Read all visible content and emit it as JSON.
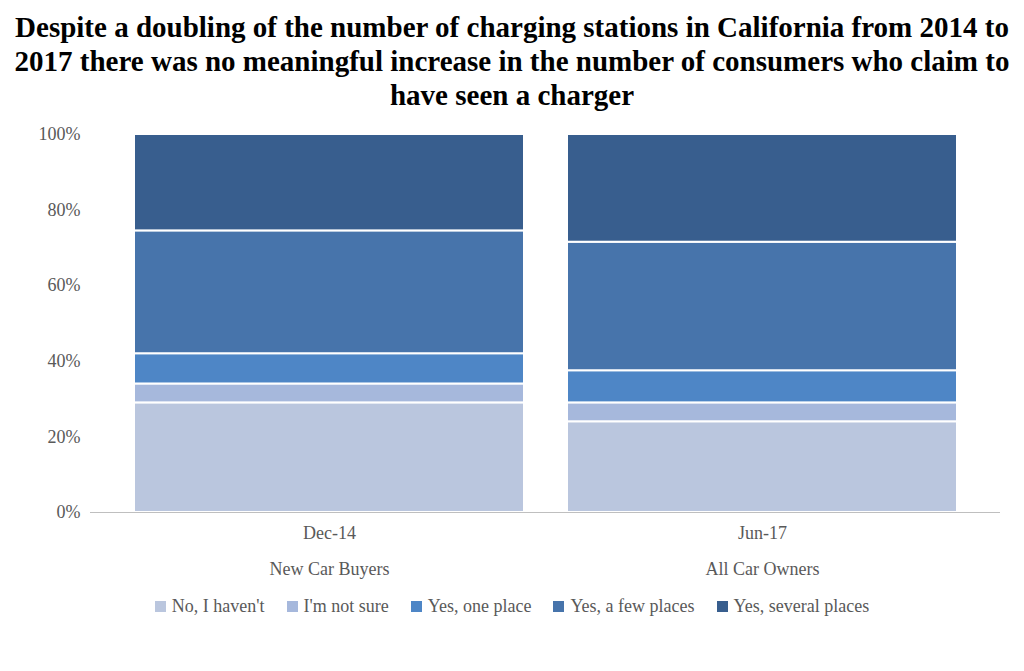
{
  "chart_data": {
    "type": "bar",
    "title": "Despite a doubling of the number of charging stations in California from 2014 to 2017 there was no meaningful increase in the number of consumers who claim to have seen a charger",
    "categories": [
      "Dec-14",
      "Jun-17"
    ],
    "groups": [
      "New Car Buyers",
      "All Car Owners"
    ],
    "stacked": true,
    "grid": false,
    "legend": "bottom",
    "ylim": [
      0,
      100
    ],
    "yticks": [
      {
        "value": 0,
        "label": "0%"
      },
      {
        "value": 20,
        "label": "20%"
      },
      {
        "value": 40,
        "label": "40%"
      },
      {
        "value": 60,
        "label": "60%"
      },
      {
        "value": 80,
        "label": "80%"
      },
      {
        "value": 100,
        "label": "100%"
      }
    ],
    "series": [
      {
        "name": "No, I haven't",
        "color": "#bac6de",
        "values": [
          29,
          24
        ]
      },
      {
        "name": "I'm not sure",
        "color": "#a6b8dc",
        "values": [
          5,
          5
        ]
      },
      {
        "name": "Yes, one place",
        "color": "#4e86c6",
        "values": [
          8,
          8.5
        ]
      },
      {
        "name": "Yes, a few places",
        "color": "#4774ab",
        "values": [
          32.5,
          34
        ]
      },
      {
        "name": "Yes, several places",
        "color": "#385e8e",
        "values": [
          25.5,
          28.5
        ]
      }
    ]
  }
}
